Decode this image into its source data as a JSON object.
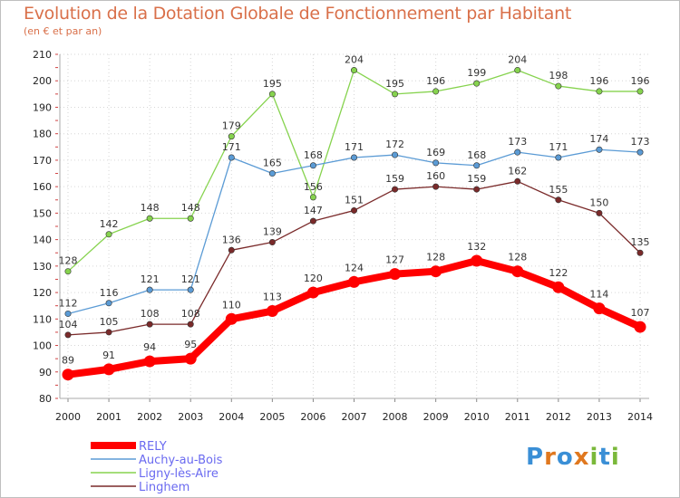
{
  "title": "Evolution de la Dotation Globale de Fonctionnement par Habitant",
  "subtitle": "(en € et par an)",
  "logo": {
    "letters": [
      "P",
      "r",
      "o",
      "x",
      "i",
      "t",
      "i"
    ],
    "colors": [
      "#3a8fd6",
      "#e0781f",
      "#3a8fd6",
      "#e0781f",
      "#7ab83a",
      "#3a8fd6",
      "#7ab83a"
    ]
  },
  "chart_data": {
    "type": "line",
    "categories": [
      "2000",
      "2001",
      "2002",
      "2003",
      "2004",
      "2005",
      "2006",
      "2007",
      "2008",
      "2009",
      "2010",
      "2011",
      "2012",
      "2013",
      "2014"
    ],
    "ylim": [
      80,
      210
    ],
    "yticks": [
      80,
      90,
      100,
      110,
      120,
      130,
      140,
      150,
      160,
      170,
      180,
      190,
      200,
      210
    ],
    "grid": true,
    "legend_position": "bottom-left",
    "series": [
      {
        "name": "Ligny-lès-Aire",
        "color": "#86d34e",
        "values": [
          128,
          142,
          148,
          148,
          179,
          195,
          156,
          204,
          195,
          196,
          199,
          204,
          198,
          196,
          196
        ]
      },
      {
        "name": "Auchy-au-Bois",
        "color": "#5b9bd5",
        "values": [
          112,
          116,
          121,
          121,
          171,
          165,
          168,
          171,
          172,
          169,
          168,
          173,
          171,
          174,
          173
        ]
      },
      {
        "name": "Linghem",
        "color": "#7a2a2a",
        "values": [
          104,
          105,
          108,
          108,
          136,
          139,
          147,
          151,
          159,
          160,
          159,
          162,
          155,
          150,
          135
        ]
      },
      {
        "name": "RELY",
        "color": "#ff0000",
        "values": [
          89,
          91,
          94,
          95,
          110,
          113,
          120,
          124,
          127,
          128,
          132,
          128,
          122,
          114,
          107
        ]
      }
    ],
    "legend_order": [
      "RELY",
      "Auchy-au-Bois",
      "Ligny-lès-Aire",
      "Linghem"
    ]
  }
}
